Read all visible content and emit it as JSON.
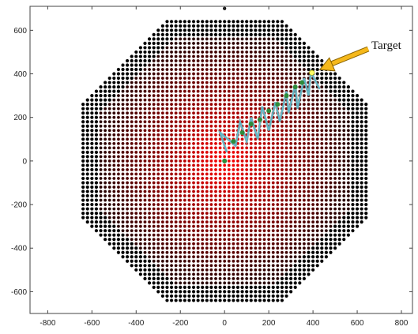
{
  "chart_data": {
    "type": "scatter",
    "title": "",
    "xlabel": "",
    "ylabel": "",
    "xlim": [
      -880,
      850
    ],
    "ylim": [
      -700,
      710
    ],
    "xticks": [
      -800,
      -600,
      -400,
      -200,
      0,
      200,
      400,
      600,
      800
    ],
    "yticks": [
      -600,
      -400,
      -200,
      0,
      200,
      400,
      600
    ],
    "xtick_labels": [
      "-800",
      "-600",
      "-400",
      "-200",
      "0",
      "200",
      "400",
      "600",
      "800"
    ],
    "ytick_labels": [
      "-600",
      "-400",
      "-200",
      "0",
      "200",
      "400",
      "600"
    ],
    "grid": false,
    "points": {
      "description_free": true,
      "spacing": 20,
      "region": "octagonal lattice centered at origin",
      "inner_half_width": 560,
      "outer_edge_range": [
        560,
        680
      ],
      "shading": "red radial gradient on inner points, black on outer points"
    },
    "path": {
      "color": "#5fb8c8",
      "points": [
        [
          10,
          40
        ],
        [
          -20,
          130
        ],
        [
          50,
          70
        ],
        [
          70,
          180
        ],
        [
          100,
          90
        ],
        [
          120,
          200
        ],
        [
          150,
          100
        ],
        [
          170,
          250
        ],
        [
          200,
          140
        ],
        [
          230,
          270
        ],
        [
          250,
          180
        ],
        [
          280,
          320
        ],
        [
          290,
          220
        ],
        [
          320,
          350
        ],
        [
          330,
          240
        ],
        [
          360,
          380
        ],
        [
          380,
          300
        ],
        [
          390,
          410
        ],
        [
          430,
          330
        ]
      ]
    },
    "waypoints": {
      "color": "#2e8b3a",
      "points": [
        [
          0,
          0
        ],
        [
          40,
          90
        ],
        [
          80,
          130
        ],
        [
          120,
          170
        ],
        [
          160,
          190
        ],
        [
          200,
          230
        ],
        [
          240,
          260
        ],
        [
          280,
          300
        ],
        [
          320,
          340
        ],
        [
          350,
          360
        ]
      ]
    },
    "target": {
      "label": "Target",
      "point": [
        395,
        405
      ],
      "arrow_color": "#f5b81b"
    }
  }
}
